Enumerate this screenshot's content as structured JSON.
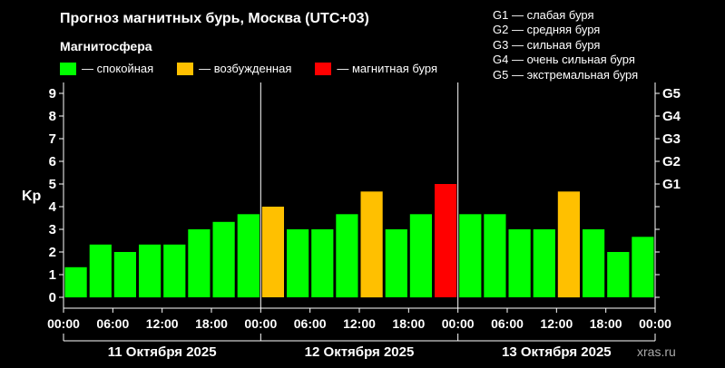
{
  "title": "Прогноз магнитных бурь, Москва (UTC+03)",
  "legend": {
    "title": "Магнитосфера",
    "items": [
      {
        "label": "— спокойная",
        "color": "#00ff00"
      },
      {
        "label": "— возбужденная",
        "color": "#ffc000"
      },
      {
        "label": "— магнитная буря",
        "color": "#ff0000"
      }
    ]
  },
  "g_levels": [
    "G1 — слабая буря",
    "G2 — средняя буря",
    "G3 — сильная буря",
    "G4 — очень сильная буря",
    "G5 — экстремальная буря"
  ],
  "watermark": "xras.ru",
  "chart_data": {
    "type": "bar",
    "ylabel": "Kp",
    "ylim": [
      0,
      9
    ],
    "y_ticks": [
      "0",
      "1",
      "2",
      "3",
      "4",
      "5",
      "6",
      "7",
      "8",
      "9"
    ],
    "right_ticks": [
      {
        "label": "G1",
        "value": 5
      },
      {
        "label": "G2",
        "value": 6
      },
      {
        "label": "G3",
        "value": 7
      },
      {
        "label": "G4",
        "value": 8
      },
      {
        "label": "G5",
        "value": 9
      }
    ],
    "x_tick_labels": [
      "00:00",
      "06:00",
      "12:00",
      "18:00",
      "00:00",
      "06:00",
      "12:00",
      "18:00",
      "00:00",
      "06:00",
      "12:00",
      "18:00",
      "00:00"
    ],
    "days": [
      "11 Октября 2025",
      "12 Октября 2025",
      "13 Октября 2025"
    ],
    "values": [
      1.33,
      2.33,
      2.0,
      2.33,
      2.33,
      3.0,
      3.33,
      3.67,
      4.0,
      3.0,
      3.0,
      3.67,
      4.67,
      3.0,
      3.67,
      5.0,
      3.67,
      3.67,
      3.0,
      3.0,
      4.67,
      3.0,
      2.0,
      2.67
    ],
    "levels": [
      "quiet",
      "quiet",
      "quiet",
      "quiet",
      "quiet",
      "quiet",
      "quiet",
      "quiet",
      "active",
      "quiet",
      "quiet",
      "quiet",
      "active",
      "quiet",
      "quiet",
      "storm",
      "quiet",
      "quiet",
      "quiet",
      "quiet",
      "active",
      "quiet",
      "quiet",
      "quiet"
    ],
    "colors": {
      "quiet": "#00ff00",
      "active": "#ffc000",
      "storm": "#ff0000"
    },
    "grid": false
  }
}
